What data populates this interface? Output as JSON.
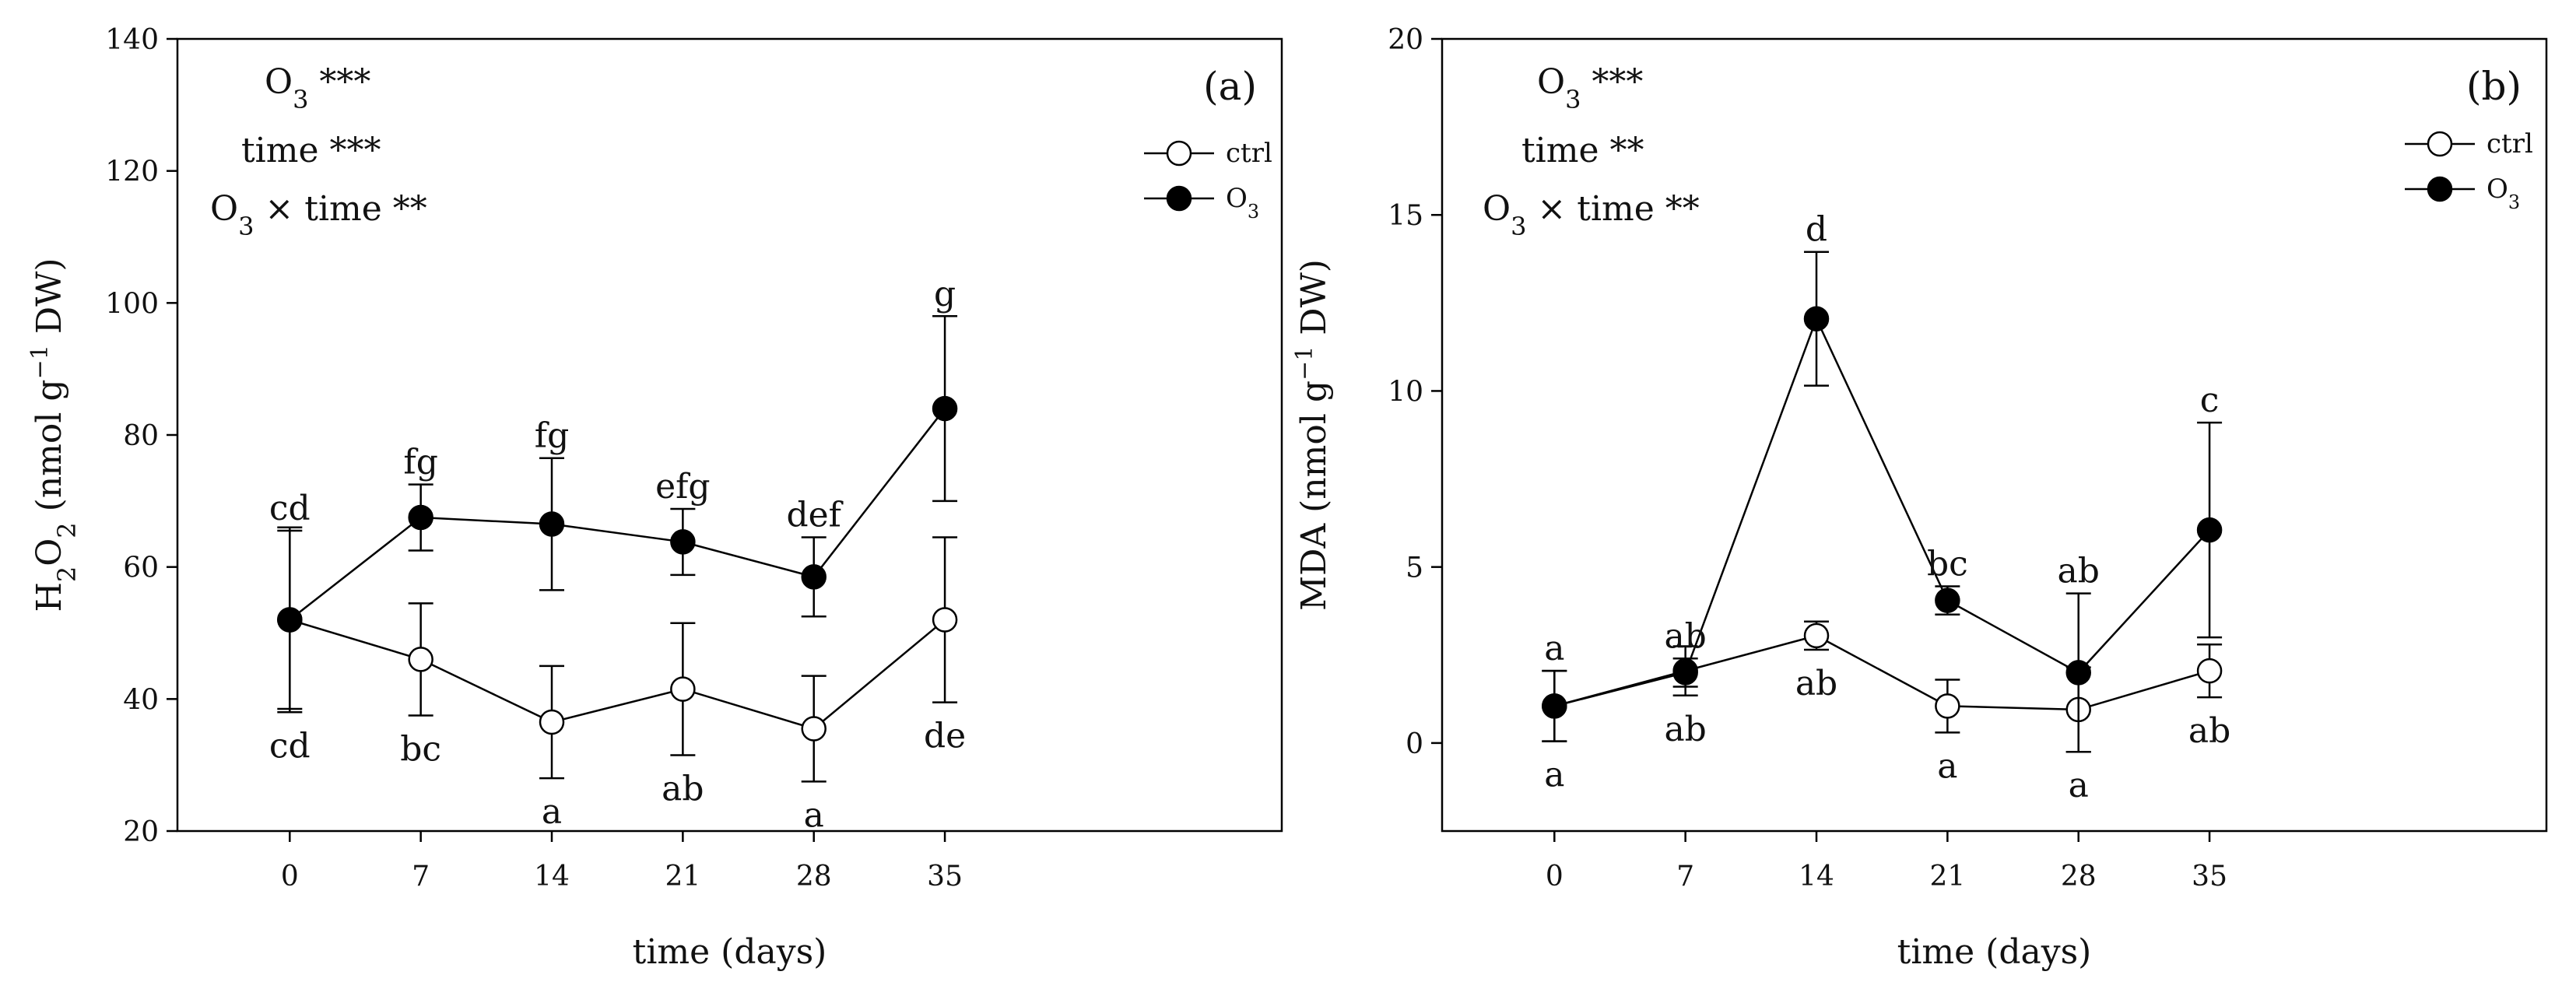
{
  "chart_data": [
    {
      "type": "line",
      "panel_label": "(a)",
      "xlabel": "time (days)",
      "ylabel": {
        "main": "H",
        "sub1": "2",
        "mid": "O",
        "sub2": "2",
        "rest": " (nmol g",
        "sup": "−1",
        "end": " DW)"
      },
      "x": [
        0,
        7,
        14,
        21,
        28,
        35
      ],
      "xlim": [
        -6,
        53
      ],
      "ylim": [
        20,
        140
      ],
      "yticks": [
        20,
        40,
        60,
        80,
        100,
        120,
        140
      ],
      "xticks": [
        0,
        7,
        14,
        21,
        28,
        35
      ],
      "grid": false,
      "legend_position": "top-right",
      "significance": [
        {
          "pre": "O",
          "sub": "3",
          "post": " ***"
        },
        {
          "pre": "time ***",
          "sub": "",
          "post": ""
        },
        {
          "pre": "O",
          "sub": "3",
          "post": " × time **"
        }
      ],
      "series": [
        {
          "name": "ctrl",
          "marker": "open",
          "values": [
            52,
            46,
            36.5,
            41.5,
            35.5,
            52
          ],
          "err": [
            14,
            8.5,
            8.5,
            10,
            8,
            12.5
          ],
          "letters": [
            "cd",
            "bc",
            "a",
            "ab",
            "a",
            "de"
          ]
        },
        {
          "name": "O",
          "name_sub": "3",
          "marker": "filled",
          "values": [
            52,
            67.5,
            66.5,
            63.8,
            58.5,
            84
          ],
          "err": [
            13.5,
            5,
            10,
            5,
            6,
            14
          ],
          "letters": [
            "cd",
            "fg",
            "fg",
            "efg",
            "def",
            "g"
          ]
        }
      ]
    },
    {
      "type": "line",
      "panel_label": "(b)",
      "xlabel": "time (days)",
      "ylabel": {
        "main": "MDA",
        "sub1": "",
        "mid": "",
        "sub2": "",
        "rest": " (nmol g",
        "sup": "−1",
        "end": " DW)"
      },
      "x": [
        0,
        7,
        14,
        21,
        28,
        35
      ],
      "xlim": [
        -6,
        53
      ],
      "ylim": [
        -2.5,
        20
      ],
      "yticks": [
        0,
        5,
        10,
        15,
        20
      ],
      "xticks": [
        0,
        7,
        14,
        21,
        28,
        35
      ],
      "grid": false,
      "legend_position": "top-right",
      "significance": [
        {
          "pre": "O",
          "sub": "3",
          "post": " ***"
        },
        {
          "pre": "time **",
          "sub": "",
          "post": ""
        },
        {
          "pre": "O",
          "sub": "3",
          "post": " × time **"
        }
      ],
      "series": [
        {
          "name": "ctrl",
          "marker": "open",
          "values": [
            1.05,
            2.05,
            3.05,
            1.05,
            0.95,
            2.05
          ],
          "err": [
            1.0,
            0.7,
            0.4,
            0.75,
            1.2,
            0.75
          ],
          "letters": [
            "a",
            "ab",
            "ab",
            "a",
            "a",
            "ab"
          ]
        },
        {
          "name": "O",
          "name_sub": "3",
          "marker": "filled",
          "values": [
            1.05,
            2.0,
            12.05,
            4.05,
            2.0,
            6.05
          ],
          "err": [
            1.0,
            0.4,
            1.9,
            0.4,
            2.25,
            3.05
          ],
          "letters": [
            "a",
            "ab",
            "d",
            "bc",
            "ab",
            "c"
          ]
        }
      ]
    }
  ]
}
